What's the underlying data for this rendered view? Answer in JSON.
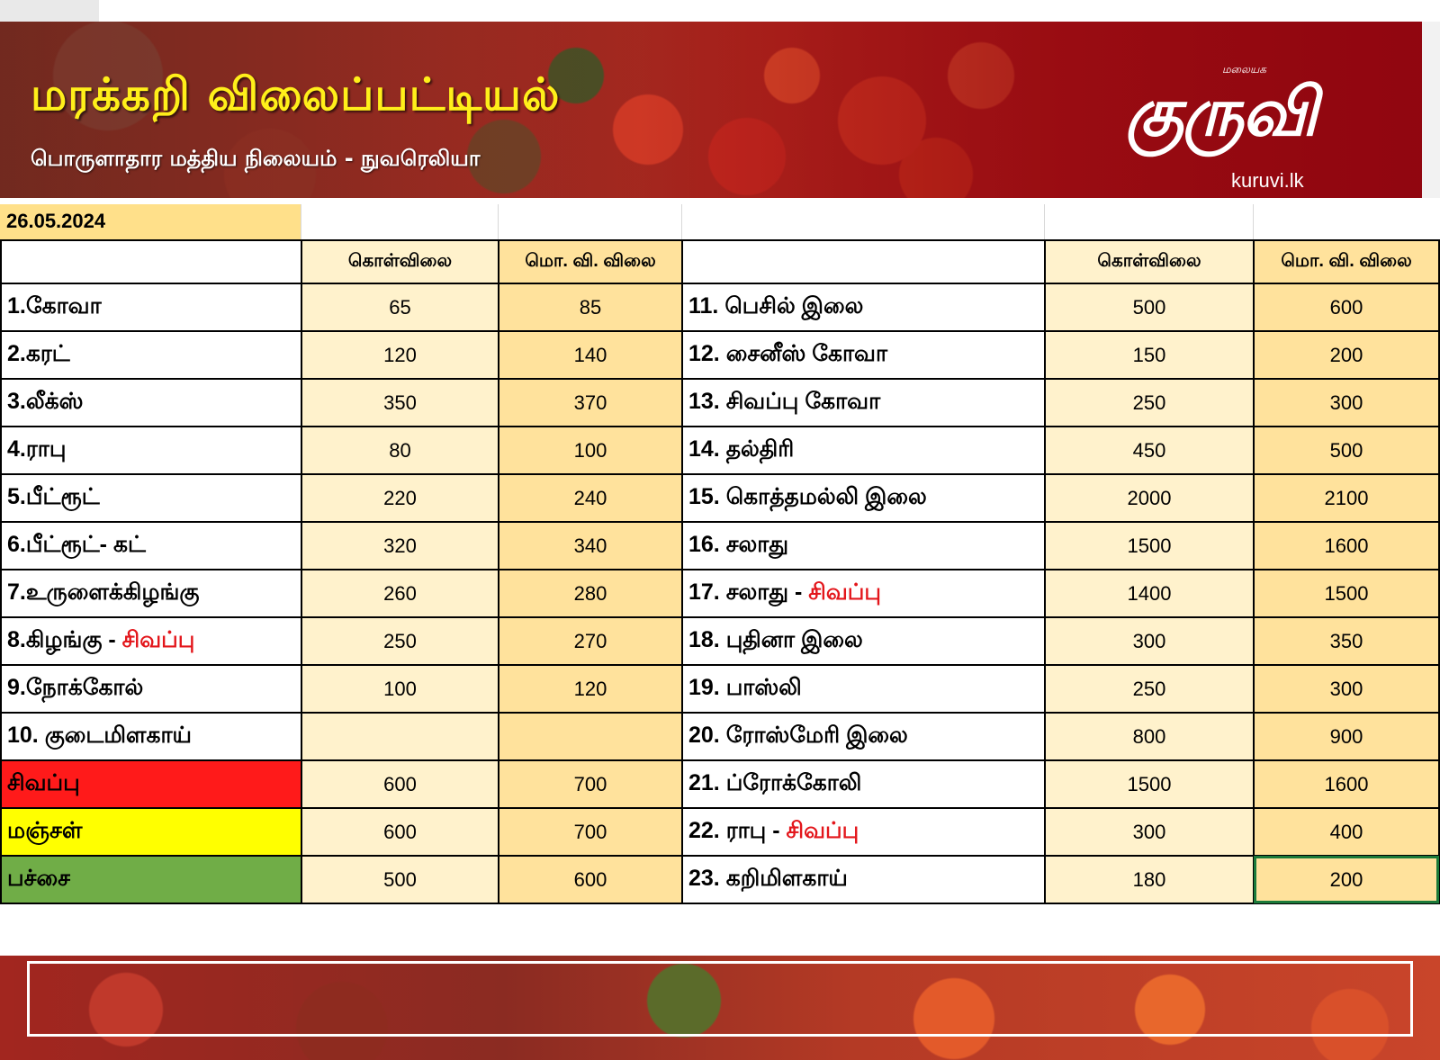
{
  "header": {
    "title": "மரக்கறி விலைப்பட்டியல்",
    "subtitle": "பொருளாதார மத்திய நிலையம் - நுவரெலியா",
    "logo_small": "மலையக",
    "logo_main": "குருவி",
    "logo_url": "kuruvi.lk"
  },
  "date": "26.05.2024",
  "columns": {
    "wholesale": "கொள்விலை",
    "retail": "மொ. வி. விலை"
  },
  "left_rows": [
    {
      "name": "1.கோவா",
      "suffix": "",
      "wholesale": "65",
      "retail": "85",
      "bg": ""
    },
    {
      "name": "2.கரட்",
      "suffix": "",
      "wholesale": "120",
      "retail": "140",
      "bg": ""
    },
    {
      "name": "3.லீக்ஸ்",
      "suffix": "",
      "wholesale": "350",
      "retail": "370",
      "bg": ""
    },
    {
      "name": "4.ராபு",
      "suffix": "",
      "wholesale": "80",
      "retail": "100",
      "bg": ""
    },
    {
      "name": "5.பீட்ரூட்",
      "suffix": "",
      "wholesale": "220",
      "retail": "240",
      "bg": ""
    },
    {
      "name": "6.பீட்ரூட்- கட்",
      "suffix": "",
      "wholesale": "320",
      "retail": "340",
      "bg": ""
    },
    {
      "name": "7.உருளைக்கிழங்கு",
      "suffix": "",
      "wholesale": "260",
      "retail": "280",
      "bg": ""
    },
    {
      "name": "8.கிழங்கு - ",
      "suffix": "சிவப்பு",
      "wholesale": "250",
      "retail": "270",
      "bg": ""
    },
    {
      "name": "9.நோக்கோல்",
      "suffix": "",
      "wholesale": "100",
      "retail": "120",
      "bg": ""
    },
    {
      "name": "10. குடைமிளகாய்",
      "suffix": "",
      "wholesale": "",
      "retail": "",
      "bg": ""
    },
    {
      "name": "சிவப்பு",
      "suffix": "",
      "wholesale": "600",
      "retail": "700",
      "bg": "#ff1a1a"
    },
    {
      "name": "மஞ்சள்",
      "suffix": "",
      "wholesale": "600",
      "retail": "700",
      "bg": "#ffff00"
    },
    {
      "name": "பச்சை",
      "suffix": "",
      "wholesale": "500",
      "retail": "600",
      "bg": "#70ad47"
    }
  ],
  "right_rows": [
    {
      "name": "11. பெசில் இலை",
      "suffix": "",
      "wholesale": "500",
      "retail": "600"
    },
    {
      "name": "12. சைனீஸ் கோவா",
      "suffix": "",
      "wholesale": "150",
      "retail": "200"
    },
    {
      "name": "13. சிவப்பு கோவா",
      "suffix": "",
      "wholesale": "250",
      "retail": "300"
    },
    {
      "name": "14. தல்திரி",
      "suffix": "",
      "wholesale": "450",
      "retail": "500"
    },
    {
      "name": "15. கொத்தமல்லி இலை",
      "suffix": "",
      "wholesale": "2000",
      "retail": "2100"
    },
    {
      "name": "16. சலாது",
      "suffix": "",
      "wholesale": "1500",
      "retail": "1600"
    },
    {
      "name": "17. சலாது - ",
      "suffix": "சிவப்பு",
      "wholesale": "1400",
      "retail": "1500"
    },
    {
      "name": "18. புதினா இலை",
      "suffix": "",
      "wholesale": "300",
      "retail": "350"
    },
    {
      "name": "19. பாஸ்லி",
      "suffix": "",
      "wholesale": "250",
      "retail": "300"
    },
    {
      "name": "20. ரோஸ்மேரி இலை",
      "suffix": "",
      "wholesale": "800",
      "retail": "900"
    },
    {
      "name": "21. ப்ரோக்கோலி",
      "suffix": "",
      "wholesale": "1500",
      "retail": "1600"
    },
    {
      "name": "22. ராபு - ",
      "suffix": "சிவப்பு",
      "wholesale": "300",
      "retail": "400"
    },
    {
      "name": "23. கறிமிளகாய்",
      "suffix": "",
      "wholesale": "180",
      "retail": "200"
    }
  ],
  "colors": {
    "title_yellow": "#ffef1a",
    "banner_red": "#a3191b",
    "cell_light": "#fff2cc",
    "cell_dark": "#ffe29c",
    "accent_red_text": "#e3161b"
  }
}
